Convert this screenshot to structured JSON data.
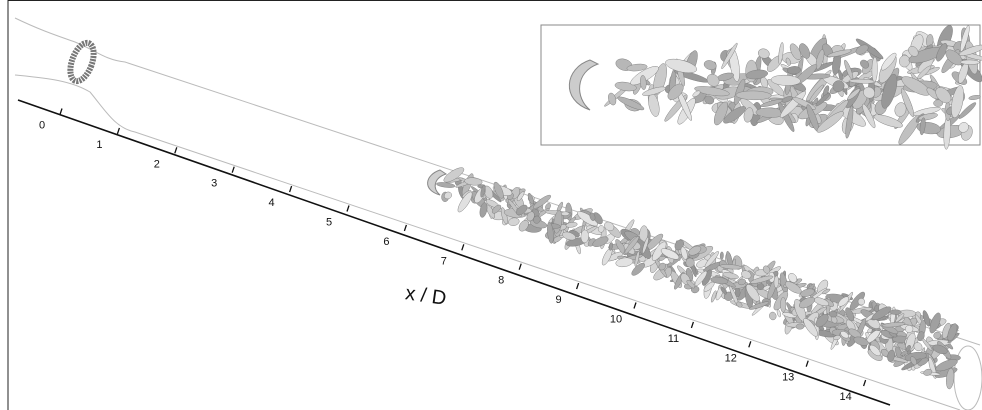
{
  "axis": {
    "label": "x / D",
    "ticks": [
      0,
      1,
      2,
      3,
      4,
      5,
      6,
      7,
      8,
      9,
      10,
      11,
      12,
      13,
      14
    ]
  }
}
